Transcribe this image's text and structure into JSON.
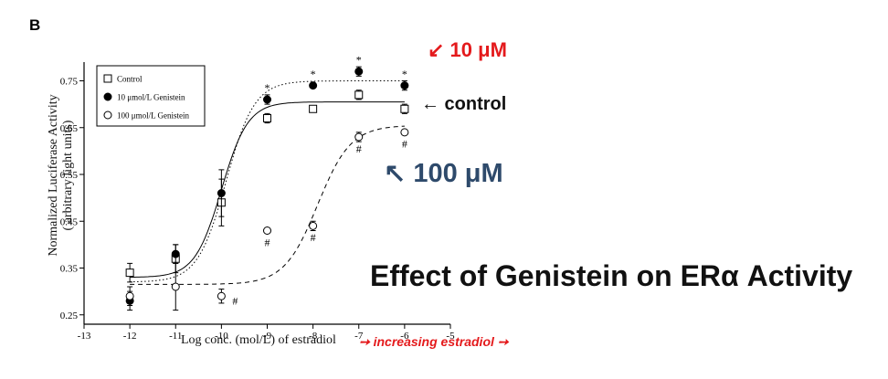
{
  "panel_label": "B",
  "annotations": {
    "ten_um": "↙ 10 μM",
    "control": "← control",
    "hundred_um": "↖ 100 μM",
    "title": "Effect of Genistein on ERα Activity",
    "xaxis_note": "➙ increasing estradiol ➙"
  },
  "colors": {
    "ten_um": "#e41a1c",
    "control": "#111111",
    "hundred_um": "#2e4a6b",
    "note": "#e41a1c"
  },
  "chart_data": {
    "type": "scatter",
    "xlabel": "Log conc. (mol/L) of estradiol",
    "ylabel_line1": "Normalized Luciferase Activity",
    "ylabel_line2": "( arbitrary light units)",
    "xlim": [
      -13,
      -5
    ],
    "ylim": [
      0.23,
      0.79
    ],
    "xticks": [
      -13,
      -12,
      -11,
      -10,
      -9,
      -8,
      -7,
      -6,
      -5
    ],
    "yticks": [
      0.25,
      0.35,
      0.45,
      0.55,
      0.65,
      0.75
    ],
    "legend_position": "top-left",
    "series": [
      {
        "name": "Control",
        "marker": "open-square",
        "line": "solid",
        "x": [
          -12,
          -11,
          -10,
          -9,
          -8,
          -7,
          -6
        ],
        "y": [
          0.34,
          0.37,
          0.49,
          0.67,
          0.69,
          0.72,
          0.69
        ],
        "err": [
          0.02,
          0.03,
          0.05,
          0.01,
          0.005,
          0.01,
          0.01
        ],
        "fit": {
          "bottom": 0.33,
          "top": 0.705,
          "logEC50": -10.0,
          "hill": 1.5
        }
      },
      {
        "name": "10 μmol/L Genistein",
        "marker": "filled-circle",
        "line": "dotted",
        "x": [
          -12,
          -11,
          -10,
          -9,
          -8,
          -7,
          -6
        ],
        "y": [
          0.28,
          0.38,
          0.51,
          0.71,
          0.74,
          0.77,
          0.74
        ],
        "err": [
          0.02,
          0.02,
          0.05,
          0.01,
          0.005,
          0.01,
          0.01
        ],
        "fit": {
          "bottom": 0.32,
          "top": 0.75,
          "logEC50": -9.9,
          "hill": 1.4
        }
      },
      {
        "name": "100 μmol/L Genistein",
        "marker": "open-circle",
        "line": "dashed",
        "x": [
          -12,
          -11,
          -10,
          -9,
          -8,
          -7,
          -6
        ],
        "y": [
          0.29,
          0.31,
          0.29,
          0.43,
          0.44,
          0.63,
          0.64
        ],
        "err": [
          0.02,
          0.05,
          0.015,
          0,
          0.01,
          0.01,
          0
        ],
        "fit": {
          "bottom": 0.315,
          "top": 0.655,
          "logEC50": -7.9,
          "hill": 1.2
        }
      }
    ],
    "significance_marks": [
      {
        "symbol": "*",
        "x": -9,
        "y": 0.735
      },
      {
        "symbol": "*",
        "x": -8,
        "y": 0.765
      },
      {
        "symbol": "*",
        "x": -7,
        "y": 0.795
      },
      {
        "symbol": "*",
        "x": -6,
        "y": 0.765
      },
      {
        "symbol": "#",
        "x": -9,
        "y": 0.405
      },
      {
        "symbol": "#",
        "x": -8,
        "y": 0.415
      },
      {
        "symbol": "#",
        "x": -7,
        "y": 0.605
      },
      {
        "symbol": "#",
        "x": -6,
        "y": 0.615
      },
      {
        "symbol": "#",
        "x": -9.7,
        "y": 0.28
      }
    ]
  }
}
